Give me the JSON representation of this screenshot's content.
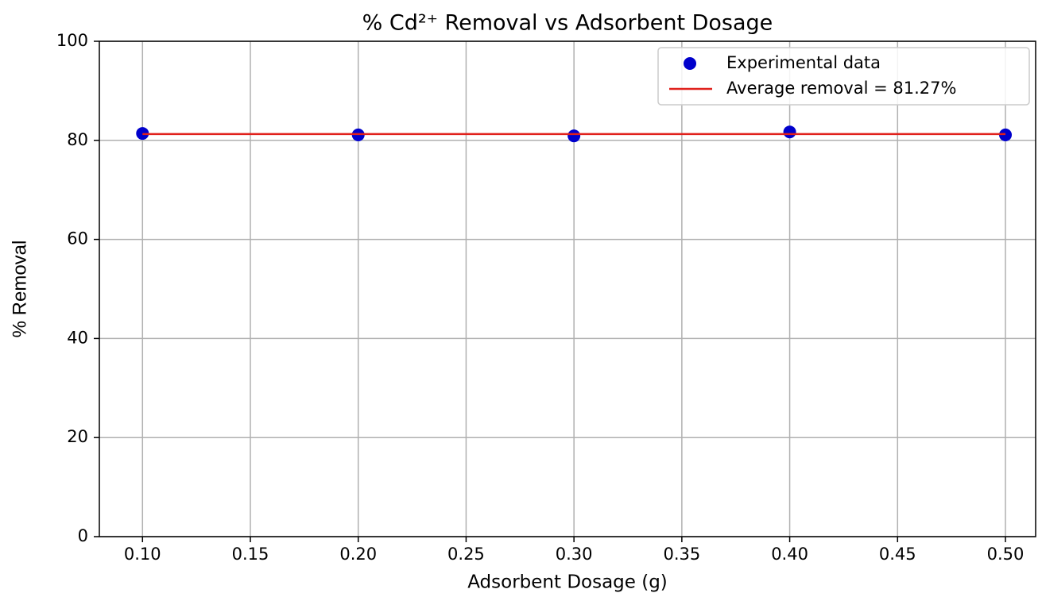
{
  "chart_data": {
    "type": "scatter",
    "title": "% Cd²⁺ Removal vs Adsorbent Dosage",
    "x_label": "Adsorbent Dosage (g)",
    "y_label": "% Removal",
    "series": [
      {
        "name": "Experimental data",
        "type": "scatter",
        "color": "#0000cc",
        "x": [
          0.1,
          0.2,
          0.3,
          0.4,
          0.5
        ],
        "values": [
          81.4,
          81.1,
          80.9,
          81.7,
          81.1
        ]
      },
      {
        "name": "Average removal = 81.27%",
        "type": "line",
        "color": "#e0201b",
        "x": [
          0.1,
          0.5
        ],
        "values": [
          81.27,
          81.27
        ]
      }
    ],
    "xlim": [
      0.08,
      0.514
    ],
    "ylim": [
      0,
      100
    ],
    "xticks": [
      {
        "value": 0.1,
        "label": "0.10"
      },
      0.15,
      {
        "value": 0.2,
        "label": "0.20"
      },
      0.25,
      {
        "value": 0.3,
        "label": "0.30"
      },
      0.35,
      {
        "value": 0.4,
        "label": "0.40"
      },
      0.45,
      {
        "value": 0.5,
        "label": "0.50"
      }
    ],
    "yticks": [
      0,
      20,
      40,
      60,
      80,
      100
    ],
    "grid": true,
    "legend": "upper right"
  }
}
